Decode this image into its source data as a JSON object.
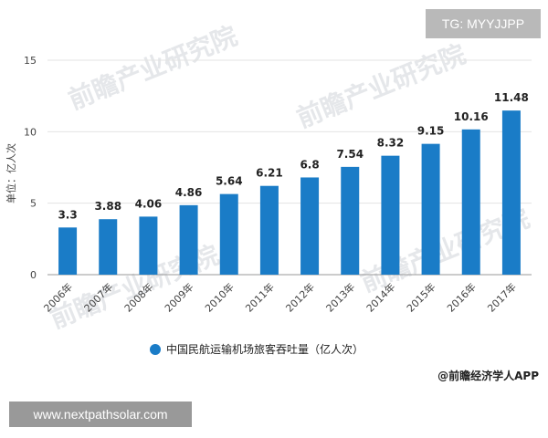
{
  "tag": "TG: MYYJJPP",
  "website": "www.nextpathsolar.com",
  "credit": "@前瞻经济学人APP",
  "watermark": "前瞻产业研究院",
  "chart_data": {
    "type": "bar",
    "categories": [
      "2006年",
      "2007年",
      "2008年",
      "2009年",
      "2010年",
      "2011年",
      "2012年",
      "2013年",
      "2014年",
      "2015年",
      "2016年",
      "2017年"
    ],
    "values": [
      3.3,
      3.88,
      4.06,
      4.86,
      5.64,
      6.21,
      6.8,
      7.54,
      8.32,
      9.15,
      10.16,
      11.48
    ],
    "value_labels": [
      "3.3",
      "3.88",
      "4.06",
      "4.86",
      "5.64",
      "6.21",
      "6.8",
      "7.54",
      "8.32",
      "9.15",
      "10.16",
      "11.48"
    ],
    "series_name": "中国民航运输机场旅客吞吐量（亿人次）",
    "ylabel": "单位：亿人次",
    "xlabel": "",
    "ylim": [
      0,
      15
    ],
    "yticks": [
      0,
      5,
      10,
      15
    ],
    "grid": true,
    "legend": "bottom",
    "color": "#1a7cc7"
  }
}
